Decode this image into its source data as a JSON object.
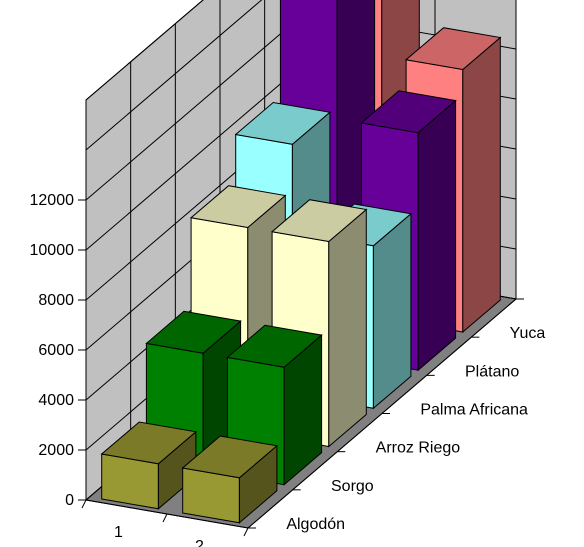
{
  "chart_data": {
    "type": "bar",
    "subtype": "3d-column",
    "x_categories": [
      "1",
      "2"
    ],
    "depth_categories": [
      "Algodón",
      "Sorgo",
      "Arroz Riego",
      "Palma Africana",
      "Plátano",
      "Yuca"
    ],
    "series": [
      {
        "name": "Algodón",
        "values": [
          1800,
          1800
        ],
        "color": "#999933"
      },
      {
        "name": "Sorgo",
        "values": [
          4700,
          4700
        ],
        "color": "#008000"
      },
      {
        "name": "Arroz Riego",
        "values": [
          8200,
          8200
        ],
        "color": "#ffffcc"
      },
      {
        "name": "Palma Africana",
        "values": [
          10000,
          6500
        ],
        "color": "#99ffff"
      },
      {
        "name": "Plátano",
        "values": [
          14500,
          9500
        ],
        "color": "#660099"
      },
      {
        "name": "Yuca",
        "values": [
          14000,
          10500
        ],
        "color": "#ff8080"
      }
    ],
    "y_ticks": [
      "0",
      "2000",
      "4000",
      "6000",
      "8000",
      "10000",
      "12000"
    ],
    "ylim": [
      0,
      16000
    ],
    "grid": true,
    "title": "",
    "xlabel": "",
    "ylabel": ""
  }
}
